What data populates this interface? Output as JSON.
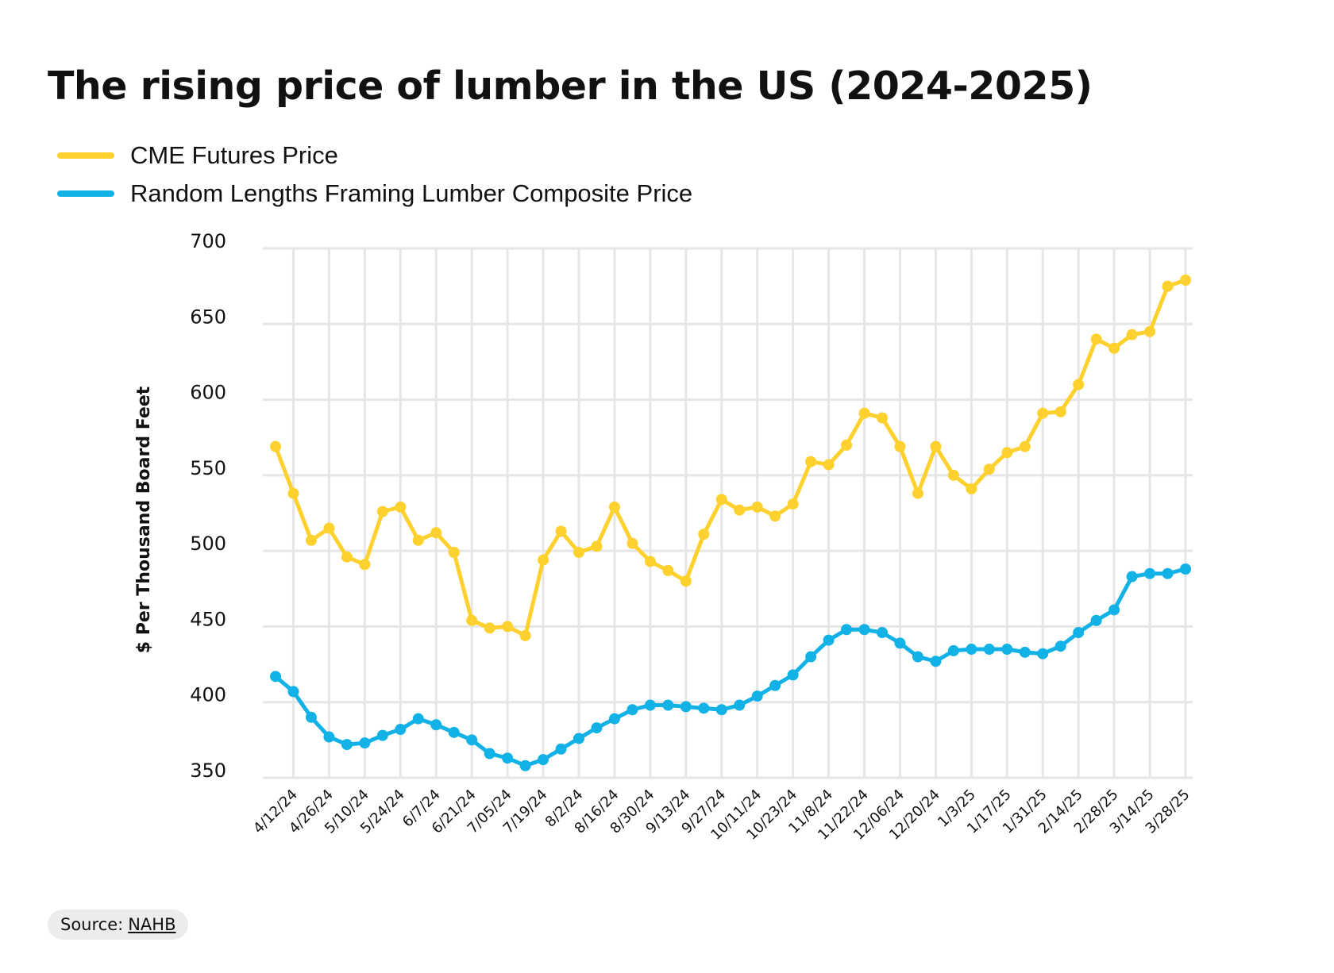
{
  "title": "The rising price of lumber in the US (2024-2025)",
  "source": {
    "label": "Source:",
    "link": "NAHB"
  },
  "chart_data": {
    "type": "line",
    "title": "The rising price of lumber in the US (2024-2025)",
    "xlabel": "",
    "ylabel": "$ Per Thousand Board Feet",
    "ylim": [
      350,
      700
    ],
    "yticks": [
      350,
      400,
      450,
      500,
      550,
      600,
      650,
      700
    ],
    "grid": true,
    "legend_position": "top-left",
    "x_tick_labels": [
      "4/12/24",
      "4/26/24",
      "5/10/24",
      "5/24/24",
      "6/7/24",
      "6/21/24",
      "7/05/24",
      "7/19/24",
      "8/2/24",
      "8/16/24",
      "8/30/24",
      "9/13/24",
      "9/27/24",
      "10/11/24",
      "10/23/24",
      "11/8/24",
      "11/22/24",
      "12/06/24",
      "12/20/24",
      "1/3/25",
      "1/17/25",
      "1/31/25",
      "2/14/25",
      "2/28/25",
      "3/14/25",
      "3/28/25"
    ],
    "series": [
      {
        "name": "CME Futures Price",
        "color": "#FFD12F",
        "values": [
          569,
          538,
          507,
          515,
          496,
          491,
          526,
          529,
          507,
          512,
          499,
          454,
          449,
          450,
          444,
          494,
          513,
          499,
          503,
          529,
          505,
          493,
          487,
          480,
          511,
          534,
          527,
          529,
          523,
          531,
          559,
          557,
          570,
          591,
          588,
          569,
          538,
          569,
          550,
          541,
          554,
          565,
          569,
          591,
          592,
          610,
          640,
          634,
          643,
          645,
          675,
          679
        ]
      },
      {
        "name": "Random Lengths Framing Lumber Composite Price",
        "color": "#12B2E6",
        "values": [
          417,
          407,
          390,
          377,
          372,
          373,
          378,
          382,
          389,
          385,
          380,
          375,
          366,
          363,
          358,
          362,
          369,
          376,
          383,
          389,
          395,
          398,
          398,
          397,
          396,
          395,
          398,
          404,
          411,
          418,
          430,
          441,
          448,
          448,
          446,
          439,
          430,
          427,
          434,
          435,
          435,
          435,
          433,
          432,
          437,
          446,
          454,
          461,
          483,
          485,
          485,
          488
        ]
      }
    ]
  }
}
